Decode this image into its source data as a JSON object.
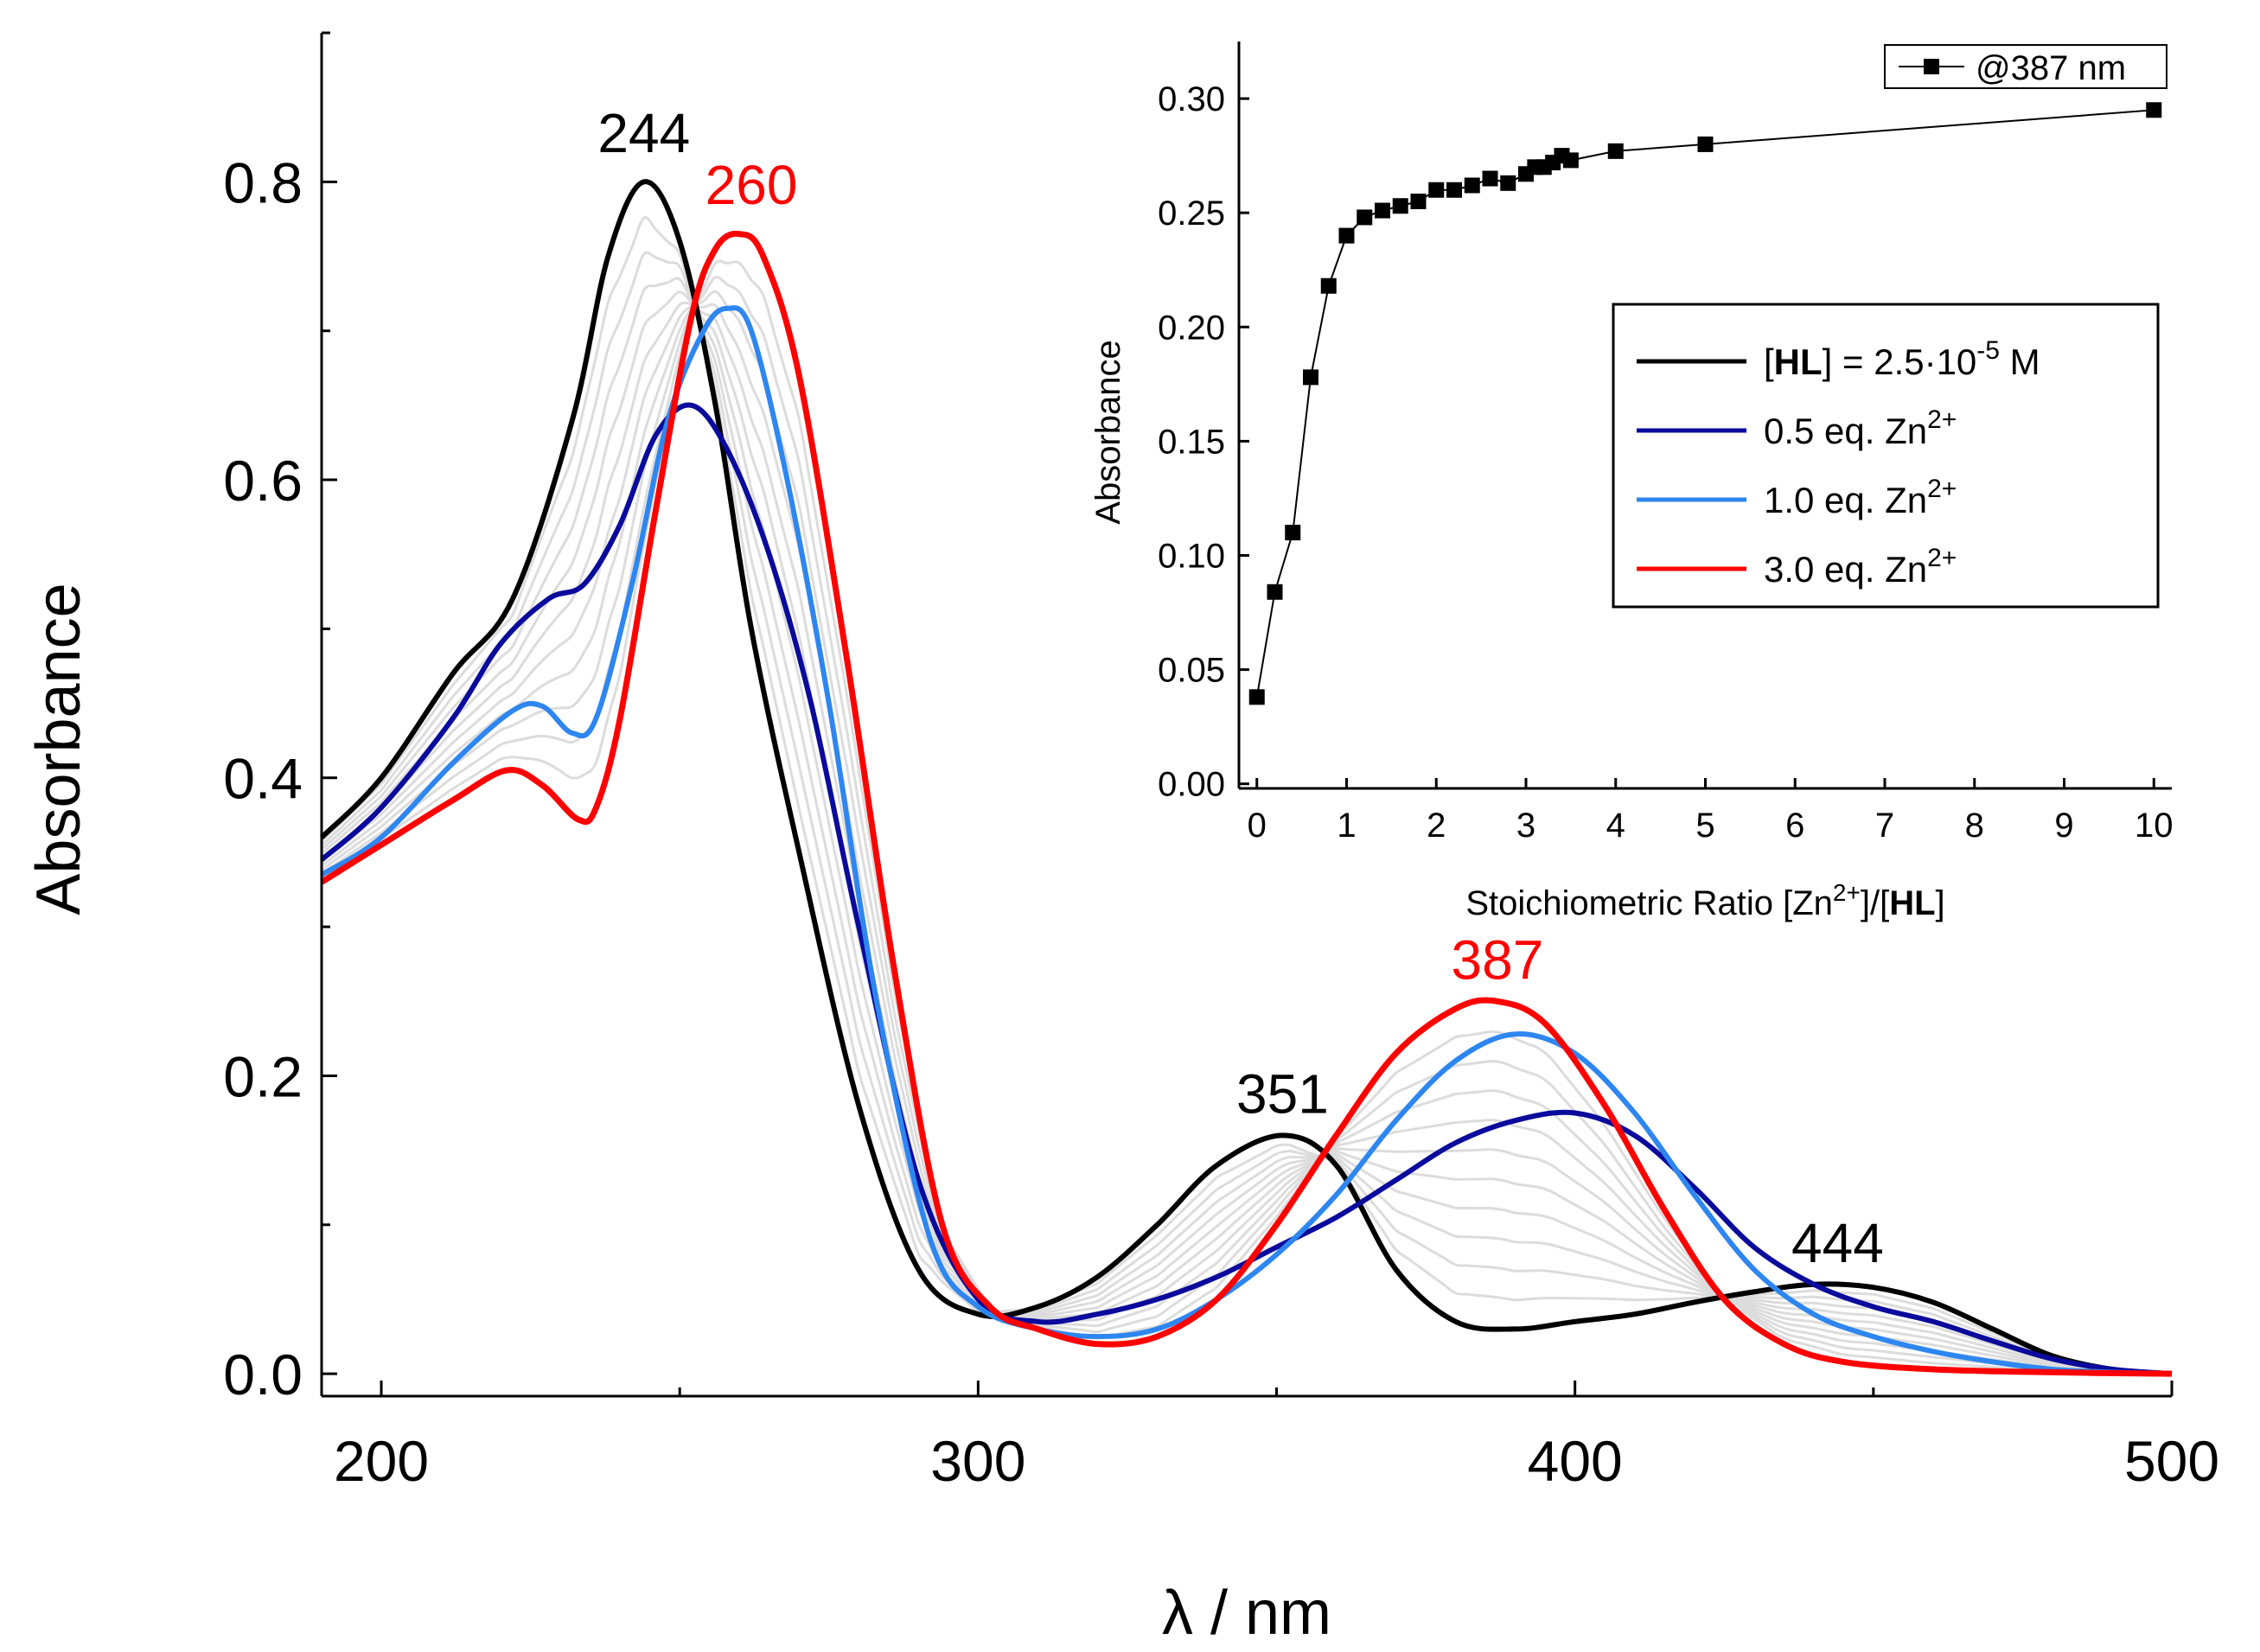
{
  "chart_data": [
    {
      "id": "main",
      "type": "line",
      "title": "",
      "xlabel": "λ / nm",
      "ylabel": "Absorbance",
      "xlim": [
        190,
        500
      ],
      "ylim": [
        -0.015,
        0.9
      ],
      "xticks": [
        200,
        300,
        400,
        500
      ],
      "xtick_labels": [
        "200",
        "300",
        "400",
        "500"
      ],
      "yticks": [
        0.0,
        0.2,
        0.4,
        0.6,
        0.8
      ],
      "ytick_labels": [
        "0.0",
        "0.2",
        "0.4",
        "0.6",
        "0.8"
      ],
      "colors": {
        "free_ligand": "#000000",
        "half_eq": "#0a0a9c",
        "one_eq": "#2e86f0",
        "three_eq": "#ff0000",
        "intermediate": "#dcdcdc"
      },
      "annotations": [
        {
          "text": "244",
          "x": 244,
          "y": 0.82,
          "color": "#000000"
        },
        {
          "text": "260",
          "x": 262,
          "y": 0.785,
          "color": "#ff0000"
        },
        {
          "text": "351",
          "x": 351,
          "y": 0.175,
          "color": "#000000"
        },
        {
          "text": "387",
          "x": 387,
          "y": 0.265,
          "color": "#ff0000"
        },
        {
          "text": "444",
          "x": 444,
          "y": 0.075,
          "color": "#000000"
        }
      ],
      "series": [
        {
          "name": "[HL] = 2.5·10-5 M",
          "color": "#000000",
          "x": [
            190,
            200,
            212,
            222,
            232,
            238,
            244,
            250,
            256,
            262,
            270,
            280,
            290,
            300,
            310,
            320,
            330,
            340,
            351,
            360,
            370,
            380,
            390,
            400,
            410,
            420,
            430,
            440,
            450,
            460,
            470,
            480,
            490,
            500
          ],
          "y": [
            0.36,
            0.4,
            0.47,
            0.52,
            0.64,
            0.75,
            0.8,
            0.76,
            0.65,
            0.5,
            0.35,
            0.18,
            0.07,
            0.04,
            0.045,
            0.065,
            0.1,
            0.14,
            0.16,
            0.14,
            0.07,
            0.035,
            0.03,
            0.035,
            0.04,
            0.048,
            0.055,
            0.06,
            0.058,
            0.048,
            0.03,
            0.012,
            0.003,
            0.0
          ]
        },
        {
          "name": "0.5 eq. Zn2+",
          "color": "#0a0a9c",
          "x": [
            190,
            200,
            212,
            220,
            228,
            234,
            240,
            246,
            252,
            258,
            265,
            272,
            280,
            290,
            300,
            310,
            320,
            330,
            340,
            350,
            360,
            370,
            380,
            390,
            400,
            410,
            420,
            430,
            440,
            450,
            460,
            470,
            480,
            490,
            500
          ],
          "y": [
            0.345,
            0.38,
            0.44,
            0.49,
            0.52,
            0.53,
            0.57,
            0.63,
            0.65,
            0.62,
            0.55,
            0.45,
            0.3,
            0.13,
            0.05,
            0.035,
            0.04,
            0.05,
            0.065,
            0.085,
            0.105,
            0.13,
            0.155,
            0.17,
            0.175,
            0.16,
            0.125,
            0.085,
            0.06,
            0.045,
            0.035,
            0.022,
            0.01,
            0.003,
            0.0
          ]
        },
        {
          "name": "1.0 eq. Zn2+",
          "color": "#2e86f0",
          "x": [
            190,
            200,
            212,
            222,
            227,
            232,
            236,
            242,
            248,
            254,
            258,
            262,
            268,
            275,
            283,
            292,
            300,
            310,
            320,
            330,
            340,
            350,
            360,
            370,
            380,
            390,
            400,
            410,
            420,
            430,
            440,
            450,
            460,
            470,
            480,
            490,
            500
          ],
          "y": [
            0.335,
            0.36,
            0.41,
            0.445,
            0.448,
            0.43,
            0.44,
            0.53,
            0.64,
            0.7,
            0.715,
            0.7,
            0.6,
            0.45,
            0.25,
            0.09,
            0.045,
            0.03,
            0.025,
            0.03,
            0.05,
            0.08,
            0.12,
            0.17,
            0.21,
            0.228,
            0.215,
            0.175,
            0.12,
            0.07,
            0.04,
            0.025,
            0.015,
            0.008,
            0.003,
            0.001,
            0.0
          ]
        },
        {
          "name": "3.0 eq. Zn2+",
          "color": "#ff0000",
          "x": [
            190,
            200,
            212,
            221,
            227,
            233,
            236,
            240,
            246,
            252,
            256,
            260,
            264,
            270,
            278,
            286,
            294,
            302,
            310,
            320,
            330,
            340,
            350,
            360,
            370,
            380,
            387,
            395,
            405,
            415,
            425,
            435,
            445,
            460,
            480,
            500
          ],
          "y": [
            0.33,
            0.355,
            0.385,
            0.405,
            0.395,
            0.372,
            0.38,
            0.44,
            0.58,
            0.71,
            0.755,
            0.765,
            0.75,
            0.67,
            0.48,
            0.27,
            0.1,
            0.045,
            0.03,
            0.02,
            0.025,
            0.05,
            0.1,
            0.16,
            0.215,
            0.245,
            0.25,
            0.235,
            0.18,
            0.11,
            0.05,
            0.02,
            0.008,
            0.003,
            0.001,
            0.0
          ]
        }
      ],
      "intermediate_series_count": 10,
      "legend": {
        "placement": "inside-right",
        "entries": [
          {
            "prefix": "[",
            "bold": "HL",
            "rest": "] = 2.5·10",
            "sup": "-5",
            "tail": " M",
            "color": "#000000"
          },
          {
            "prefix": "0.5 eq. Zn",
            "bold": "",
            "rest": "",
            "sup": "2+",
            "tail": "",
            "color": "#0a0a9c"
          },
          {
            "prefix": "1.0 eq. Zn",
            "bold": "",
            "rest": "",
            "sup": "2+",
            "tail": "",
            "color": "#2e86f0"
          },
          {
            "prefix": "3.0 eq. Zn",
            "bold": "",
            "rest": "",
            "sup": "2+",
            "tail": "",
            "color": "#ff0000"
          }
        ]
      }
    },
    {
      "id": "inset",
      "type": "scatter",
      "title": "",
      "xlabel_parts": {
        "pre": "Stoichiometric Ratio [Zn",
        "sup": "2+",
        "mid": "]/[",
        "bold": "HL",
        "post": "]"
      },
      "ylabel": "Absorbance",
      "xlim": [
        -0.2,
        10.2
      ],
      "ylim": [
        -0.002,
        0.325
      ],
      "xticks": [
        0,
        1,
        2,
        3,
        4,
        5,
        6,
        7,
        8,
        9,
        10
      ],
      "xtick_labels": [
        "0",
        "1",
        "2",
        "3",
        "4",
        "5",
        "6",
        "7",
        "8",
        "9",
        "10"
      ],
      "yticks": [
        0.0,
        0.05,
        0.1,
        0.15,
        0.2,
        0.25,
        0.3
      ],
      "ytick_labels": [
        "0.00",
        "0.05",
        "0.10",
        "0.15",
        "0.20",
        "0.25",
        "0.30"
      ],
      "legend_label": "@387 nm",
      "color": "#000000",
      "x": [
        0.0,
        0.2,
        0.4,
        0.6,
        0.8,
        1.0,
        1.2,
        1.4,
        1.6,
        1.8,
        2.0,
        2.2,
        2.4,
        2.6,
        2.8,
        3.0,
        3.1,
        3.2,
        3.3,
        3.4,
        3.5,
        4.0,
        5.0,
        10.0
      ],
      "y": [
        0.038,
        0.084,
        0.11,
        0.178,
        0.218,
        0.24,
        0.248,
        0.251,
        0.253,
        0.255,
        0.26,
        0.26,
        0.262,
        0.265,
        0.263,
        0.267,
        0.27,
        0.27,
        0.272,
        0.275,
        0.273,
        0.277,
        0.28,
        0.295
      ]
    }
  ]
}
